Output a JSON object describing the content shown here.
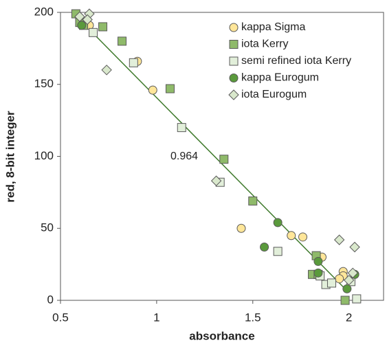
{
  "chart_data": {
    "type": "scatter",
    "xlabel": "absorbance",
    "ylabel": "red, 8-bit integer",
    "xlim": [
      0.5,
      2.18
    ],
    "ylim": [
      0,
      200
    ],
    "xticks": [
      0.5,
      1,
      1.5,
      2
    ],
    "yticks": [
      0,
      50,
      100,
      150,
      200
    ],
    "grid": false,
    "legend": "upper right",
    "annotation": "0.964",
    "fit_line": {
      "color": "#3f7a2c",
      "x": [
        0.57,
        1.98
      ],
      "y": [
        199,
        8
      ]
    },
    "series": [
      {
        "name": "kappa Sigma",
        "marker": "circle",
        "color": "#ffe699",
        "x": [
          0.65,
          0.9,
          0.98,
          1.44,
          1.7,
          1.76,
          1.86,
          1.97,
          1.97,
          1.95,
          2.03
        ],
        "values": [
          191,
          166,
          146,
          50,
          45,
          44,
          30,
          20,
          17,
          15,
          18
        ]
      },
      {
        "name": "iota Kerry",
        "marker": "square",
        "color": "#8fba6a",
        "x": [
          0.58,
          0.6,
          0.62,
          0.72,
          0.82,
          1.07,
          1.35,
          1.5,
          1.83,
          1.81,
          1.84,
          1.98
        ],
        "values": [
          199,
          193,
          191,
          190,
          180,
          147,
          98,
          69,
          31,
          18,
          18,
          0
        ]
      },
      {
        "name": "semi refined iota Kerry",
        "marker": "square",
        "color": "#e2efda",
        "x": [
          0.67,
          0.88,
          1.13,
          1.33,
          1.63,
          1.88,
          1.91,
          1.85,
          2.04,
          2.01
        ],
        "values": [
          186,
          165,
          120,
          82,
          34,
          11,
          12,
          17,
          1,
          13
        ]
      },
      {
        "name": "kappa Eurogum",
        "marker": "circle",
        "color": "#5a9a3c",
        "x": [
          0.61,
          1.63,
          1.56,
          1.84,
          1.84,
          1.99,
          2.03
        ],
        "values": [
          191,
          54,
          37,
          27,
          19,
          8,
          18
        ]
      },
      {
        "name": "iota Eurogum",
        "marker": "diamond",
        "color": "#d9e8cc",
        "x": [
          0.6,
          0.65,
          0.64,
          0.74,
          1.31,
          1.95,
          2.03,
          2.02,
          2.0
        ],
        "values": [
          197,
          199,
          195,
          160,
          83,
          42,
          37,
          19,
          14
        ]
      }
    ]
  }
}
